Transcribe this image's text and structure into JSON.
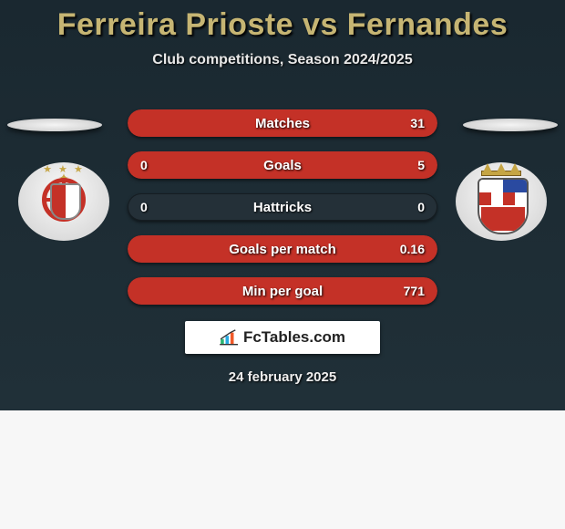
{
  "title": "Ferreira Prioste vs Fernandes",
  "subtitle": "Club competitions, Season 2024/2025",
  "date": "24 february 2025",
  "brand": "FcTables.com",
  "colors": {
    "player_a": "#c8102e",
    "player_b": "#c43127",
    "title": "#c6b573",
    "background": "#1f2e36",
    "bar_track": "#243038"
  },
  "club_a": {
    "name": "Benfica",
    "colors": {
      "primary": "#c43127",
      "secondary": "#ffffff",
      "accent": "#c5a544"
    }
  },
  "club_b": {
    "name": "Braga",
    "colors": {
      "primary": "#c43127",
      "secondary": "#ffffff",
      "blue": "#2a4aa0",
      "accent": "#c5a544"
    }
  },
  "stats": [
    {
      "label": "Matches",
      "a": "",
      "b": "31",
      "pct_a": 0,
      "pct_b": 100
    },
    {
      "label": "Goals",
      "a": "0",
      "b": "5",
      "pct_a": 0,
      "pct_b": 100
    },
    {
      "label": "Hattricks",
      "a": "0",
      "b": "0",
      "pct_a": 0,
      "pct_b": 0
    },
    {
      "label": "Goals per match",
      "a": "",
      "b": "0.16",
      "pct_a": 0,
      "pct_b": 100
    },
    {
      "label": "Min per goal",
      "a": "",
      "b": "771",
      "pct_a": 0,
      "pct_b": 100
    }
  ]
}
